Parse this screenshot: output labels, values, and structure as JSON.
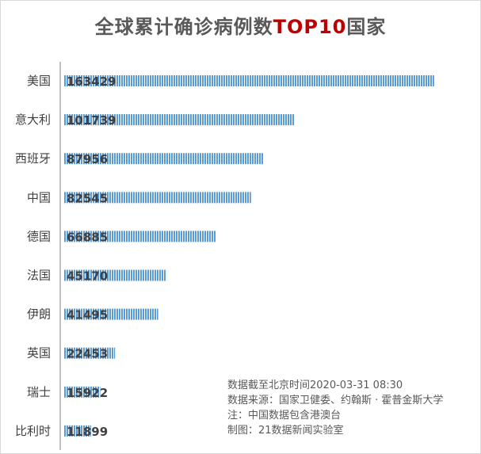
{
  "title": {
    "prefix": "全球累计确诊病例数",
    "highlight": "TOP10",
    "suffix": "国家",
    "highlight_color": "#c00000"
  },
  "notes": [
    "数据截至北京时间2020-03-31 08:30",
    "数据来源：国家卫健委、约翰斯 · 霍普金斯大学",
    "注：中国数据包含港澳台",
    "制图：21数据新闻实验室"
  ],
  "colors": {
    "bar": "#5b9bd5",
    "bar_stripe": "#ffffff",
    "axis": "#808080",
    "label": "#404040"
  },
  "chart_data": {
    "type": "bar",
    "orientation": "horizontal",
    "title": "全球累计确诊病例数TOP10国家",
    "categories": [
      "美国",
      "意大利",
      "西班牙",
      "中国",
      "德国",
      "法国",
      "伊朗",
      "英国",
      "瑞士",
      "比利时"
    ],
    "values": [
      163429,
      101739,
      87956,
      82545,
      66885,
      45170,
      41495,
      22453,
      15922,
      11899
    ],
    "xlabel": "",
    "ylabel": "",
    "xlim": [
      0,
      175000
    ],
    "grid": false,
    "legend": "none",
    "data_labels": true
  }
}
